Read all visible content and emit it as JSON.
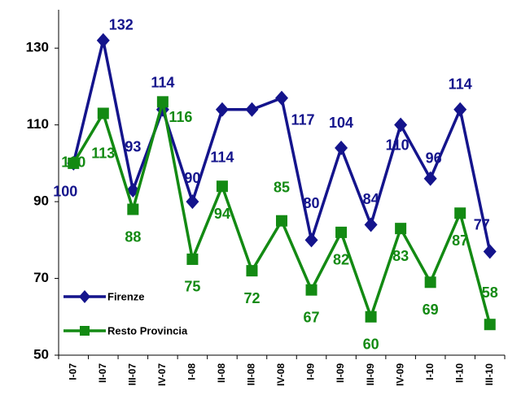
{
  "chart_data": {
    "type": "line",
    "categories": [
      "I-07",
      "II-07",
      "III-07",
      "IV-07",
      "I-08",
      "II-08",
      "III-08",
      "IV-08",
      "I-09",
      "II-09",
      "III-09",
      "IV-09",
      "I-10",
      "II-10",
      "III-10"
    ],
    "series": [
      {
        "name": "Firenze",
        "color": "#14148c",
        "marker": "diamond",
        "values": [
          100,
          132,
          93,
          114,
          90,
          114,
          114,
          117,
          80,
          104,
          84,
          110,
          96,
          114,
          77
        ],
        "value_labels": [
          "100",
          "132",
          "93",
          "114",
          "90",
          "114",
          null,
          "117",
          "80",
          "104",
          "84",
          "110",
          "96",
          "114",
          "77"
        ]
      },
      {
        "name": "Resto Provincia",
        "color": "#138a13",
        "marker": "square",
        "values": [
          100,
          113,
          88,
          116,
          75,
          94,
          72,
          85,
          67,
          82,
          60,
          83,
          69,
          87,
          58
        ]
      }
    ],
    "ylim": [
      50,
      140
    ],
    "yticks": [
      50,
      70,
      90,
      110,
      130
    ],
    "grid": false,
    "legend": "lower-left"
  }
}
